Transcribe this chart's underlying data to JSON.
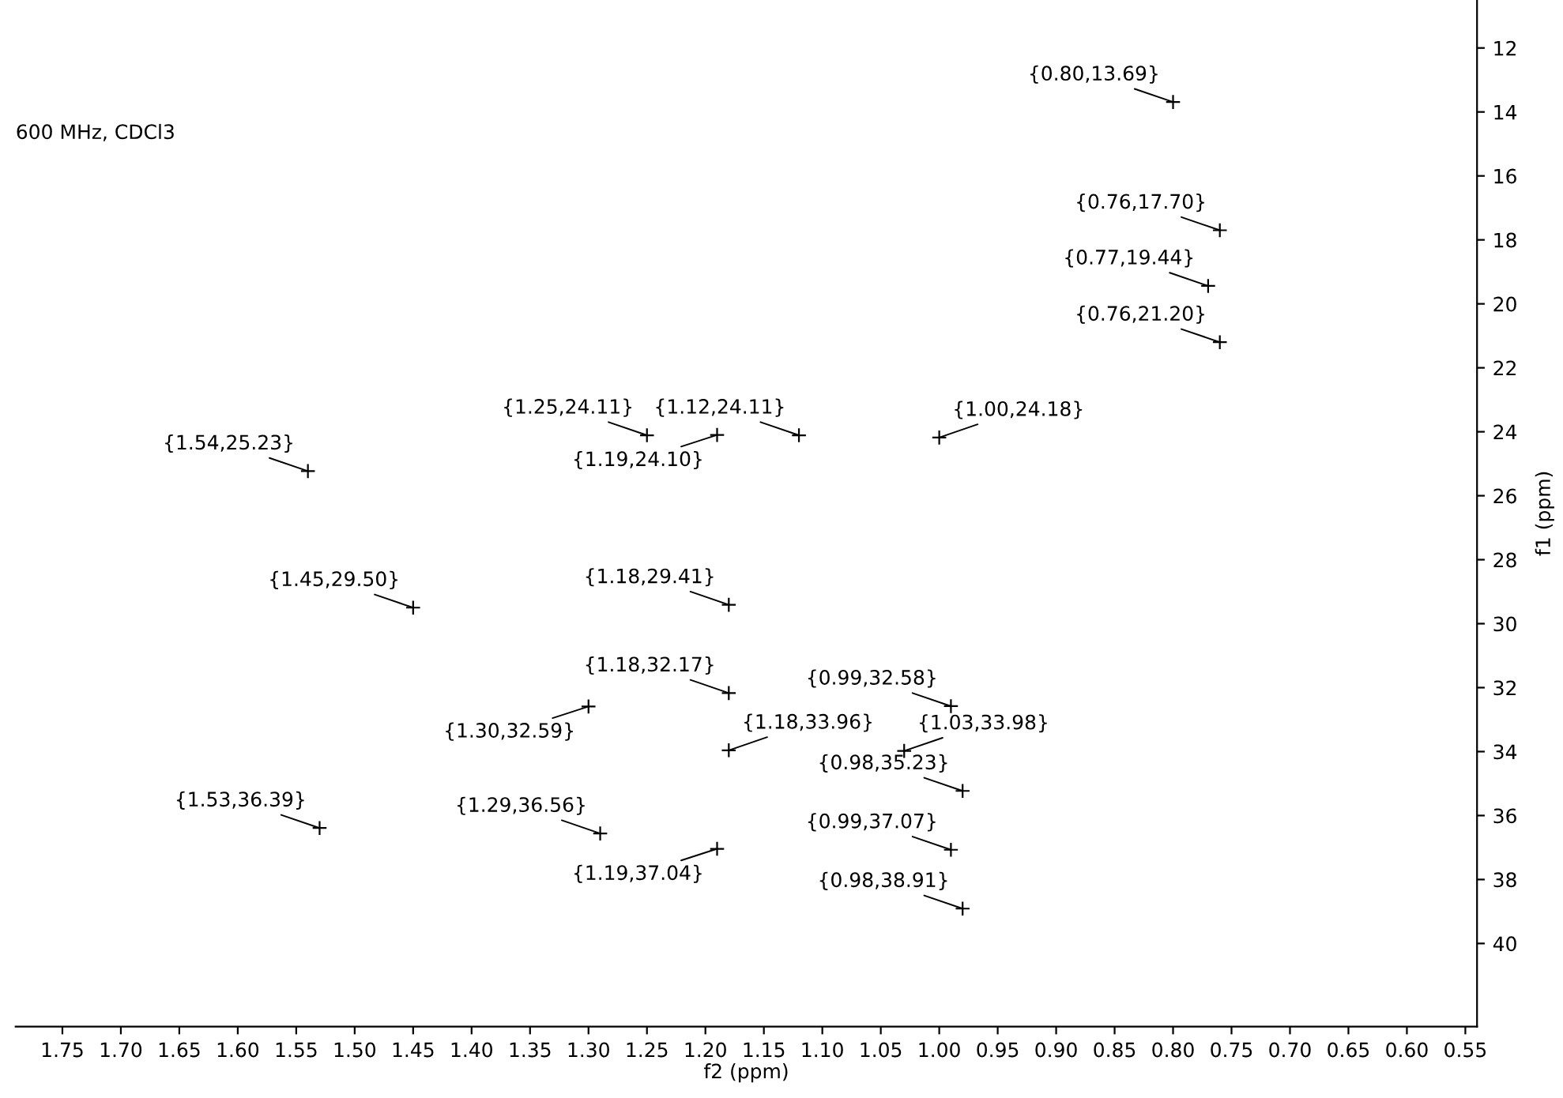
{
  "chart_data": {
    "type": "scatter",
    "xlabel": "f2 (ppm)",
    "ylabel": "f1 (ppm)",
    "marker": "cross",
    "grid": false,
    "legend": false,
    "xlim": [
      1.79,
      0.54
    ],
    "ylim": [
      42.6,
      10.5
    ],
    "xticks": [
      {
        "value": 1.75,
        "label": "1.75"
      },
      {
        "value": 1.7,
        "label": "1.70"
      },
      {
        "value": 1.65,
        "label": "1.65"
      },
      {
        "value": 1.6,
        "label": "1.60"
      },
      {
        "value": 1.55,
        "label": "1.55"
      },
      {
        "value": 1.5,
        "label": "1.50"
      },
      {
        "value": 1.45,
        "label": "1.45"
      },
      {
        "value": 1.4,
        "label": "1.40"
      },
      {
        "value": 1.35,
        "label": "1.35"
      },
      {
        "value": 1.3,
        "label": "1.30"
      },
      {
        "value": 1.25,
        "label": "1.25"
      },
      {
        "value": 1.2,
        "label": "1.20"
      },
      {
        "value": 1.15,
        "label": "1.15"
      },
      {
        "value": 1.1,
        "label": "1.10"
      },
      {
        "value": 1.05,
        "label": "1.05"
      },
      {
        "value": 1.0,
        "label": "1.00"
      },
      {
        "value": 0.95,
        "label": "0.95"
      },
      {
        "value": 0.9,
        "label": "0.90"
      },
      {
        "value": 0.85,
        "label": "0.85"
      },
      {
        "value": 0.8,
        "label": "0.80"
      },
      {
        "value": 0.75,
        "label": "0.75"
      },
      {
        "value": 0.7,
        "label": "0.70"
      },
      {
        "value": 0.65,
        "label": "0.65"
      },
      {
        "value": 0.6,
        "label": "0.60"
      },
      {
        "value": 0.55,
        "label": "0.55"
      }
    ],
    "yticks": [
      12,
      14,
      16,
      18,
      20,
      22,
      24,
      26,
      28,
      30,
      32,
      34,
      36,
      38,
      40
    ],
    "series": [
      {
        "color": "#000000",
        "x": [
          0.8,
          0.76,
          0.77,
          0.76,
          1.25,
          1.12,
          1.0,
          1.19,
          1.54,
          1.45,
          1.18,
          1.18,
          1.3,
          0.99,
          1.18,
          1.03,
          0.98,
          1.53,
          1.29,
          0.99,
          1.19,
          0.98
        ],
        "values": [
          13.69,
          17.7,
          19.44,
          21.2,
          24.11,
          24.11,
          24.18,
          24.1,
          25.23,
          29.5,
          29.41,
          32.17,
          32.59,
          32.58,
          33.96,
          33.98,
          35.23,
          36.39,
          36.56,
          37.07,
          37.04,
          38.91
        ]
      }
    ],
    "annotations": [
      "600 MHz, CDCl3",
      {
        "text": "{0.80,13.69}",
        "x": 0.8,
        "y": 13.69
      },
      {
        "text": "{0.76,17.70}",
        "x": 0.76,
        "y": 17.7
      },
      {
        "text": "{0.77,19.44}",
        "x": 0.77,
        "y": 19.44
      },
      {
        "text": "{0.76,21.20}",
        "x": 0.76,
        "y": 21.2
      },
      {
        "text": "{1.25,24.11}",
        "x": 1.25,
        "y": 24.11
      },
      {
        "text": "{1.12,24.11}",
        "x": 1.12,
        "y": 24.11
      },
      {
        "text": "{1.00,24.18}",
        "x": 1.0,
        "y": 24.18
      },
      {
        "text": "{1.19,24.10}",
        "x": 1.19,
        "y": 24.1
      },
      {
        "text": "{1.54,25.23}",
        "x": 1.54,
        "y": 25.23
      },
      {
        "text": "{1.45,29.50}",
        "x": 1.45,
        "y": 29.5
      },
      {
        "text": "{1.18,29.41}",
        "x": 1.18,
        "y": 29.41
      },
      {
        "text": "{1.18,32.17}",
        "x": 1.18,
        "y": 32.17
      },
      {
        "text": "{1.30,32.59}",
        "x": 1.3,
        "y": 32.59
      },
      {
        "text": "{0.99,32.58}",
        "x": 0.99,
        "y": 32.58
      },
      {
        "text": "{1.18,33.96}",
        "x": 1.18,
        "y": 33.96
      },
      {
        "text": "{1.03,33.98}",
        "x": 1.03,
        "y": 33.98
      },
      {
        "text": "{0.98,35.23}",
        "x": 0.98,
        "y": 35.23
      },
      {
        "text": "{1.53,36.39}",
        "x": 1.53,
        "y": 36.39
      },
      {
        "text": "{1.29,36.56}",
        "x": 1.29,
        "y": 36.56
      },
      {
        "text": "{0.99,37.07}",
        "x": 0.99,
        "y": 37.07
      },
      {
        "text": "{1.19,37.04}",
        "x": 1.19,
        "y": 37.04
      },
      {
        "text": "{0.98,38.91}",
        "x": 0.98,
        "y": 38.91
      }
    ]
  }
}
